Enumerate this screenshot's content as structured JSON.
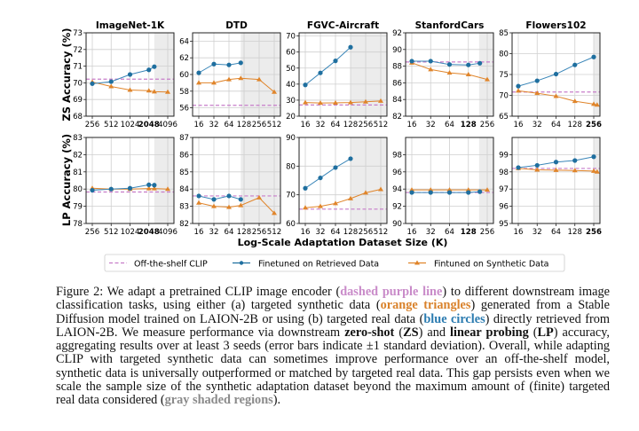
{
  "figure": {
    "row_labels": [
      "ZS Accuracy (%)",
      "LP Accuracy (%)"
    ],
    "xlabel": "Log-Scale Adaptation Dataset Size (K)",
    "legend": [
      {
        "label": "Off-the-shelf CLIP",
        "style": "dashed",
        "color": "#c77cc9"
      },
      {
        "label": "Finetuned on Retrieved Data",
        "style": "circle",
        "color": "#1f6f9f"
      },
      {
        "label": "Fintuned on Synthetic Data",
        "style": "triangle",
        "color": "#e0852b"
      }
    ],
    "colors": {
      "clip": "#c77cc9",
      "retrieved": "#1f6f9f",
      "synthetic": "#e0852b",
      "shade": "#ececec"
    }
  },
  "chart_data": [
    {
      "type": "line",
      "title": "ImageNet-1K",
      "row": "ZS",
      "xscale": "log2",
      "xticks": [
        256,
        512,
        1024,
        2048,
        4096
      ],
      "bold_tick": 2048,
      "ylim": [
        68,
        73
      ],
      "yticks": [
        68,
        69,
        70,
        71,
        72,
        73
      ],
      "grid": true,
      "shaded_from": 2500,
      "clip": 70.22,
      "retrieved": {
        "x": [
          256,
          512,
          1024,
          2048,
          2500
        ],
        "y": [
          69.95,
          70.07,
          70.5,
          70.78,
          70.97
        ]
      },
      "synthetic": {
        "x": [
          256,
          512,
          1024,
          2048,
          2500,
          4096
        ],
        "y": [
          70.05,
          69.78,
          69.57,
          69.53,
          69.47,
          69.45
        ]
      }
    },
    {
      "type": "line",
      "title": "DTD",
      "row": "ZS",
      "xscale": "log2",
      "xticks": [
        16,
        32,
        64,
        128,
        256,
        512
      ],
      "ylim": [
        55,
        65
      ],
      "yticks": [
        56,
        58,
        60,
        62,
        64
      ],
      "grid": true,
      "shaded_from": 110,
      "clip": 56.3,
      "retrieved": {
        "x": [
          16,
          32,
          64,
          110
        ],
        "y": [
          60.2,
          61.25,
          61.15,
          61.4
        ]
      },
      "synthetic": {
        "x": [
          16,
          32,
          64,
          110,
          256,
          512
        ],
        "y": [
          59.0,
          59.0,
          59.4,
          59.55,
          59.4,
          57.9
        ]
      }
    },
    {
      "type": "line",
      "title": "FGVC-Aircraft",
      "row": "ZS",
      "xscale": "log2",
      "xticks": [
        16,
        32,
        64,
        128,
        256,
        512
      ],
      "ylim": [
        20,
        72
      ],
      "yticks": [
        20,
        30,
        40,
        50,
        60,
        70
      ],
      "grid": true,
      "shaded_from": 128,
      "clip": 27,
      "retrieved": {
        "x": [
          16,
          32,
          64,
          128
        ],
        "y": [
          39.5,
          47,
          54.5,
          63
        ]
      },
      "synthetic": {
        "x": [
          16,
          32,
          64,
          128,
          256,
          512
        ],
        "y": [
          28.5,
          28.2,
          28.3,
          28.5,
          29,
          29.5
        ]
      }
    },
    {
      "type": "line",
      "title": "StanfordCars",
      "row": "ZS",
      "xscale": "log2",
      "xticks": [
        16,
        32,
        64,
        128,
        256
      ],
      "bold_tick": 128,
      "ylim": [
        82,
        92
      ],
      "yticks": [
        82,
        84,
        86,
        88,
        90,
        92
      ],
      "grid": true,
      "shaded_from": 190,
      "clip": 88.5,
      "retrieved": {
        "x": [
          16,
          32,
          64,
          128,
          195
        ],
        "y": [
          88.6,
          88.6,
          88.2,
          88.15,
          88.35
        ]
      },
      "synthetic": {
        "x": [
          16,
          32,
          64,
          128,
          256
        ],
        "y": [
          88.4,
          87.6,
          87.2,
          87.0,
          86.4
        ]
      }
    },
    {
      "type": "line",
      "title": "Flowers102",
      "row": "ZS",
      "xscale": "log2",
      "xticks": [
        16,
        32,
        64,
        128,
        256
      ],
      "bold_tick": 256,
      "ylim": [
        65,
        85
      ],
      "yticks": [
        65,
        70,
        75,
        80,
        85
      ],
      "grid": true,
      "shaded_from": 260,
      "clip": 70.8,
      "retrieved": {
        "x": [
          16,
          32,
          64,
          128,
          256
        ],
        "y": [
          72.2,
          73.5,
          75.1,
          77.3,
          79.2
        ]
      },
      "synthetic": {
        "x": [
          16,
          32,
          64,
          128,
          256,
          290
        ],
        "y": [
          71.1,
          70.5,
          69.8,
          68.6,
          67.9,
          67.7
        ]
      }
    },
    {
      "type": "line",
      "title": "",
      "row": "LP",
      "xscale": "log2",
      "xticks": [
        256,
        512,
        1024,
        2048,
        4096
      ],
      "bold_tick": 2048,
      "ylim": [
        78,
        83
      ],
      "yticks": [
        78,
        79,
        80,
        81,
        82,
        83
      ],
      "grid": true,
      "shaded_from": 2500,
      "clip": 79.83,
      "retrieved": {
        "x": [
          256,
          512,
          1024,
          2048,
          2500
        ],
        "y": [
          79.93,
          80.0,
          80.05,
          80.25,
          80.23
        ]
      },
      "synthetic": {
        "x": [
          256,
          512,
          1024,
          2048,
          2500,
          4096
        ],
        "y": [
          80.05,
          80.0,
          80.0,
          80.03,
          80.03,
          80.0
        ]
      }
    },
    {
      "type": "line",
      "title": "",
      "row": "LP",
      "xscale": "log2",
      "xticks": [
        16,
        32,
        64,
        128,
        256,
        512
      ],
      "ylim": [
        82,
        87
      ],
      "yticks": [
        82,
        83,
        84,
        85,
        86,
        87
      ],
      "grid": true,
      "shaded_from": 110,
      "clip": 83.6,
      "retrieved": {
        "x": [
          16,
          32,
          64,
          110
        ],
        "y": [
          83.6,
          83.4,
          83.6,
          83.4
        ]
      },
      "synthetic": {
        "x": [
          16,
          32,
          64,
          110,
          256,
          512
        ],
        "y": [
          83.2,
          83.0,
          82.95,
          83.05,
          83.5,
          82.6
        ]
      }
    },
    {
      "type": "line",
      "title": "",
      "row": "LP",
      "xscale": "log2",
      "xticks": [
        16,
        32,
        64,
        128,
        256,
        512
      ],
      "ylim": [
        60,
        90
      ],
      "yticks": [
        60,
        70,
        80,
        90
      ],
      "grid": true,
      "shaded_from": 128,
      "clip": 65,
      "retrieved": {
        "x": [
          16,
          32,
          64,
          128
        ],
        "y": [
          72.3,
          75.9,
          79.5,
          82.6
        ]
      },
      "synthetic": {
        "x": [
          16,
          32,
          64,
          128,
          256,
          512
        ],
        "y": [
          65.5,
          66,
          67,
          68.7,
          70.7,
          71.9
        ]
      }
    },
    {
      "type": "line",
      "title": "",
      "row": "LP",
      "xscale": "log2",
      "xticks": [
        16,
        32,
        64,
        128,
        256
      ],
      "bold_tick": 128,
      "ylim": [
        90,
        100
      ],
      "yticks": [
        90,
        92,
        94,
        96,
        98
      ],
      "grid": true,
      "shaded_from": 190,
      "clip": 93.6,
      "retrieved": {
        "x": [
          16,
          32,
          64,
          128,
          195
        ],
        "y": [
          93.6,
          93.6,
          93.6,
          93.6,
          93.7
        ]
      },
      "synthetic": {
        "x": [
          16,
          32,
          64,
          128,
          256
        ],
        "y": [
          93.9,
          93.9,
          93.9,
          93.9,
          93.9
        ]
      }
    },
    {
      "type": "line",
      "title": "",
      "row": "LP",
      "xscale": "log2",
      "xticks": [
        16,
        32,
        64,
        128,
        256
      ],
      "bold_tick": 256,
      "ylim": [
        95,
        100
      ],
      "yticks": [
        95,
        96,
        97,
        98,
        99
      ],
      "grid": true,
      "shaded_from": 260,
      "clip": 98.2,
      "retrieved": {
        "x": [
          16,
          32,
          64,
          128,
          256
        ],
        "y": [
          98.25,
          98.38,
          98.57,
          98.66,
          98.88
        ]
      },
      "synthetic": {
        "x": [
          16,
          32,
          64,
          128,
          256,
          290
        ],
        "y": [
          98.2,
          98.12,
          98.1,
          98.08,
          98.05,
          98.0
        ]
      }
    }
  ],
  "caption": {
    "segments": [
      {
        "text": "Figure 2: We adapt a pretrained CLIP image encoder (",
        "style": "plain"
      },
      {
        "text": "dashed purple line",
        "style": "purple"
      },
      {
        "text": ") to different downstream image classification tasks, using either (a) targeted synthetic data (",
        "style": "plain"
      },
      {
        "text": "orange triangles",
        "style": "orange"
      },
      {
        "text": ") generated from a Stable Diffusion model trained on LAION-2B or using (b) targeted real data (",
        "style": "plain"
      },
      {
        "text": "blue circles",
        "style": "blue"
      },
      {
        "text": ") directly retrieved from LAION-2B. We measure performance via downstream ",
        "style": "plain"
      },
      {
        "text": "zero-shot",
        "style": "bold"
      },
      {
        "text": " (",
        "style": "plain"
      },
      {
        "text": "ZS",
        "style": "bold"
      },
      {
        "text": ") and ",
        "style": "plain"
      },
      {
        "text": "linear probing",
        "style": "bold"
      },
      {
        "text": " (",
        "style": "plain"
      },
      {
        "text": "LP",
        "style": "bold"
      },
      {
        "text": ") accuracy, aggregating results over at least 3 seeds (error bars indicate ±1 standard deviation).  Overall, while adapting CLIP with targeted synthetic data can sometimes improve performance over an off-the-shelf model, synthetic data is universally outperformed or matched by targeted real data. This gap persists even when we scale the sample size of the synthetic adaptation dataset beyond the maximum amount of (finite) targeted real data considered (",
        "style": "plain"
      },
      {
        "text": "gray shaded regions",
        "style": "gray"
      },
      {
        "text": ").",
        "style": "plain"
      }
    ]
  }
}
